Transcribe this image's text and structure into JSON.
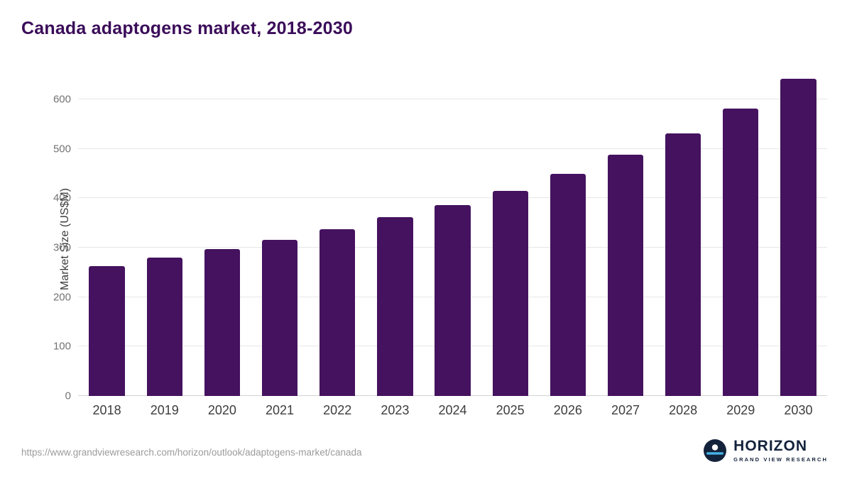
{
  "title": "Canada adaptogens market, 2018-2030",
  "source_url": "https://www.grandviewresearch.com/horizon/outlook/adaptogens-market/canada",
  "logo": {
    "name": "HORIZON",
    "subtitle": "GRAND VIEW RESEARCH",
    "icon": "horizon-circle-icon"
  },
  "colors": {
    "bar": "#45125f",
    "title": "#3a0c59",
    "gridline": "#e7e7e7",
    "axis_text": "#737373",
    "logo_navy": "#14233c",
    "logo_blue": "#45b5e8"
  },
  "chart_data": {
    "type": "bar",
    "title": "Canada adaptogens market, 2018-2030",
    "categories": [
      "2018",
      "2019",
      "2020",
      "2021",
      "2022",
      "2023",
      "2024",
      "2025",
      "2026",
      "2027",
      "2028",
      "2029",
      "2030"
    ],
    "values": [
      263,
      280,
      297,
      316,
      337,
      361,
      386,
      415,
      449,
      488,
      531,
      581,
      641
    ],
    "xlabel": "",
    "ylabel": "Market Size (US$M)",
    "ylim": [
      0,
      660
    ],
    "yticks": [
      0,
      100,
      200,
      300,
      400,
      500,
      600
    ],
    "grid": true,
    "legend": "none"
  }
}
